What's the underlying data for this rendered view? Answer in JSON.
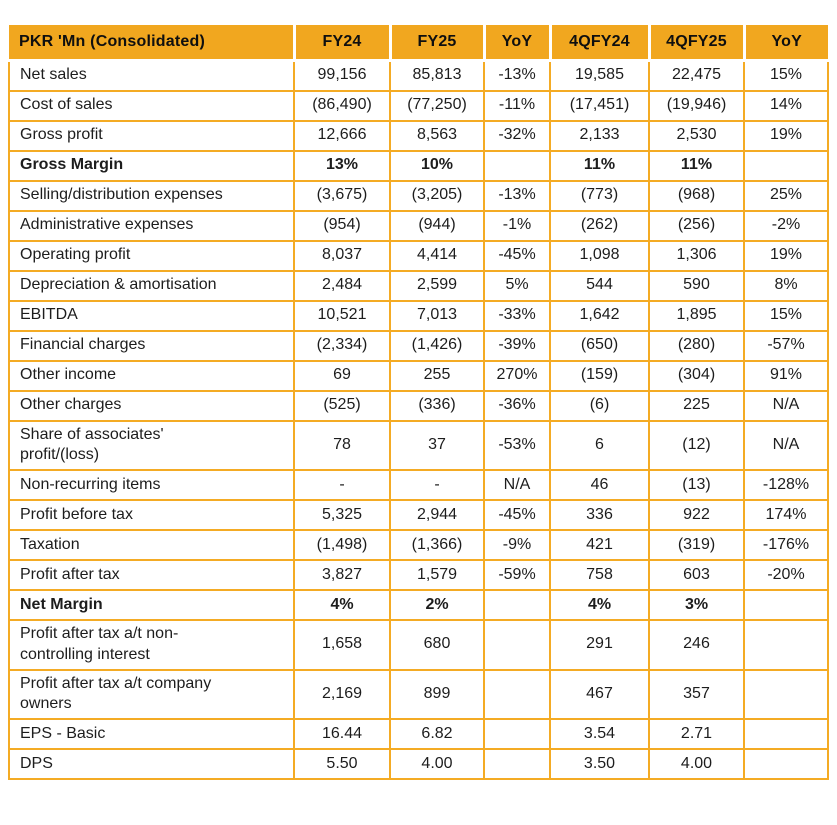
{
  "colors": {
    "accent": "#F1A71F",
    "border": "#F4AB24",
    "header_text": "#0F0F0F",
    "body_text": "#1D1D1D",
    "page_bg": "#FFFFFF"
  },
  "table": {
    "columns": [
      {
        "key": "label",
        "label": "PKR 'Mn (Consolidated)"
      },
      {
        "key": "fy24",
        "label": "FY24"
      },
      {
        "key": "fy25",
        "label": "FY25"
      },
      {
        "key": "yoy",
        "label": "YoY"
      },
      {
        "key": "q4fy24",
        "label": "4QFY24"
      },
      {
        "key": "q4fy25",
        "label": "4QFY25"
      },
      {
        "key": "yoy_q",
        "label": "YoY"
      }
    ],
    "rows": [
      {
        "bold": false,
        "cells": [
          "Net sales",
          "99,156",
          "85,813",
          "-13%",
          "19,585",
          "22,475",
          "15%"
        ]
      },
      {
        "bold": false,
        "cells": [
          "Cost of sales",
          "(86,490)",
          "(77,250)",
          "-11%",
          "(17,451)",
          "(19,946)",
          "14%"
        ]
      },
      {
        "bold": false,
        "cells": [
          "Gross profit",
          "12,666",
          "8,563",
          "-32%",
          "2,133",
          "2,530",
          "19%"
        ]
      },
      {
        "bold": true,
        "cells": [
          "Gross Margin",
          "13%",
          "10%",
          "",
          "11%",
          "11%",
          ""
        ]
      },
      {
        "bold": false,
        "cells": [
          "Selling/distribution expenses",
          "(3,675)",
          "(3,205)",
          "-13%",
          "(773)",
          "(968)",
          "25%"
        ]
      },
      {
        "bold": false,
        "cells": [
          "Administrative expenses",
          "(954)",
          "(944)",
          "-1%",
          "(262)",
          "(256)",
          "-2%"
        ]
      },
      {
        "bold": false,
        "cells": [
          "Operating profit",
          "8,037",
          "4,414",
          "-45%",
          "1,098",
          "1,306",
          "19%"
        ]
      },
      {
        "bold": false,
        "cells": [
          "Depreciation & amortisation",
          "2,484",
          "2,599",
          "5%",
          "544",
          "590",
          "8%"
        ]
      },
      {
        "bold": false,
        "cells": [
          "EBITDA",
          "10,521",
          "7,013",
          "-33%",
          "1,642",
          "1,895",
          "15%"
        ]
      },
      {
        "bold": false,
        "cells": [
          "Financial charges",
          "(2,334)",
          "(1,426)",
          "-39%",
          "(650)",
          "(280)",
          "-57%"
        ]
      },
      {
        "bold": false,
        "cells": [
          "Other income",
          "69",
          "255",
          "270%",
          "(159)",
          "(304)",
          "91%"
        ]
      },
      {
        "bold": false,
        "cells": [
          "Other charges",
          "(525)",
          "(336)",
          "-36%",
          "(6)",
          "225",
          "N/A"
        ]
      },
      {
        "bold": false,
        "cells": [
          "Share of associates'\nprofit/(loss)",
          "78",
          "37",
          "-53%",
          "6",
          "(12)",
          "N/A"
        ]
      },
      {
        "bold": false,
        "cells": [
          "Non-recurring items",
          "-",
          "-",
          "N/A",
          "46",
          "(13)",
          "-128%"
        ]
      },
      {
        "bold": false,
        "cells": [
          "Profit before tax",
          "5,325",
          "2,944",
          "-45%",
          "336",
          "922",
          "174%"
        ]
      },
      {
        "bold": false,
        "cells": [
          "Taxation",
          "(1,498)",
          "(1,366)",
          "-9%",
          "421",
          "(319)",
          "-176%"
        ]
      },
      {
        "bold": false,
        "cells": [
          "Profit after tax",
          "3,827",
          "1,579",
          "-59%",
          "758",
          "603",
          "-20%"
        ]
      },
      {
        "bold": true,
        "cells": [
          "Net Margin",
          "4%",
          "2%",
          "",
          "4%",
          "3%",
          ""
        ]
      },
      {
        "bold": false,
        "cells": [
          "Profit after tax a/t non-\ncontrolling interest",
          "1,658",
          "680",
          "",
          "291",
          "246",
          ""
        ]
      },
      {
        "bold": false,
        "cells": [
          "Profit after tax a/t company\nowners",
          "2,169",
          "899",
          "",
          "467",
          "357",
          ""
        ]
      },
      {
        "bold": false,
        "cells": [
          "EPS - Basic",
          "16.44",
          "6.82",
          "",
          "3.54",
          "2.71",
          ""
        ]
      },
      {
        "bold": false,
        "cells": [
          "DPS",
          "5.50",
          "4.00",
          "",
          "3.50",
          "4.00",
          ""
        ]
      }
    ]
  }
}
